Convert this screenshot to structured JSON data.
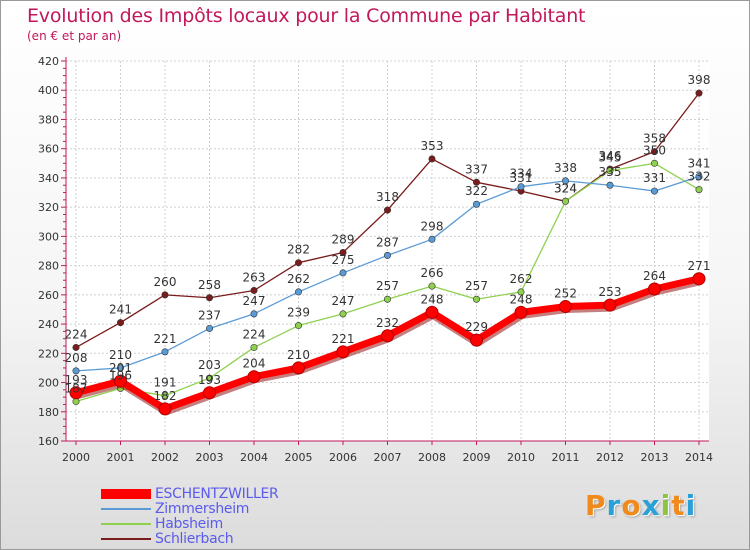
{
  "title": "Evolution des Impôts locaux pour la Commune par Habitant",
  "subtitle": "(en € et par an)",
  "logo": {
    "letters": [
      "P",
      "r",
      "o",
      "x",
      "i",
      "t",
      "i"
    ],
    "colors": [
      "#f08a1c",
      "#2aa0d8",
      "#f08a1c",
      "#2aa0d8",
      "#8cc63f",
      "#f08a1c",
      "#2aa0d8"
    ]
  },
  "chart_data": {
    "type": "line",
    "x": [
      "2000",
      "2001",
      "2002",
      "2003",
      "2004",
      "2005",
      "2006",
      "2007",
      "2008",
      "2009",
      "2010",
      "2011",
      "2012",
      "2013",
      "2014"
    ],
    "ylim": [
      160,
      420
    ],
    "yticks": [
      "160",
      "180",
      "200",
      "220",
      "240",
      "260",
      "280",
      "300",
      "320",
      "340",
      "360",
      "380",
      "400",
      "420"
    ],
    "grid": true,
    "legend": "bottom-left",
    "series": [
      {
        "name": "ESCHENTZWILLER",
        "color": "#ff0000",
        "values": [
          193,
          201,
          182,
          193,
          204,
          210,
          221,
          232,
          248,
          229,
          248,
          252,
          253,
          264,
          271
        ],
        "labels": [
          "193",
          "201",
          "182",
          "193",
          "204",
          "210",
          "221",
          "232",
          "248",
          "229",
          "248",
          "252",
          "253",
          "264",
          "271"
        ]
      },
      {
        "name": "Zimmersheim",
        "color": "#5b9bd5",
        "values": [
          208,
          210,
          221,
          237,
          247,
          262,
          275,
          287,
          298,
          322,
          334,
          338,
          335,
          331,
          341
        ],
        "labels": [
          "208",
          "210",
          "221",
          "237",
          "247",
          "262",
          "275",
          "287",
          "298",
          "322",
          "334",
          "338",
          "335",
          "331",
          "341"
        ]
      },
      {
        "name": "Habsheim",
        "color": "#8fd14f",
        "values": [
          187,
          196,
          191,
          203,
          224,
          239,
          247,
          257,
          266,
          257,
          262,
          324,
          345,
          350,
          332
        ],
        "labels": [
          "187",
          "196",
          "191",
          "203",
          "224",
          "239",
          "247",
          "257",
          "266",
          "257",
          "262",
          "324",
          "345",
          "350",
          "332"
        ]
      },
      {
        "name": "Schlierbach",
        "color": "#7a1c1c",
        "values": [
          224,
          241,
          260,
          258,
          263,
          282,
          289,
          318,
          353,
          337,
          331,
          324,
          346,
          358,
          398
        ],
        "labels": [
          "224",
          "241",
          "260",
          "258",
          "263",
          "282",
          "289",
          "318",
          "353",
          "337",
          "331",
          "324",
          "346",
          "358",
          "398"
        ]
      }
    ]
  }
}
